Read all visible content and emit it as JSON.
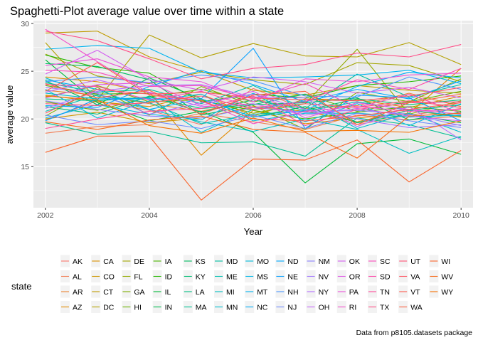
{
  "chart_data": {
    "type": "line",
    "title": "Spaghetti-Plot average value over time within a state",
    "xlabel": "Year",
    "ylabel": "average value",
    "caption": "Data from p8105.datasets package",
    "legend_title": "state",
    "legend_position": "bottom",
    "grid": true,
    "xlim": [
      2001.77,
      2010.23
    ],
    "ylim": [
      10.7,
      30.3
    ],
    "x": [
      2002,
      2003,
      2004,
      2005,
      2006,
      2007,
      2008,
      2009,
      2010
    ],
    "x_ticks": [
      "2002",
      "2004",
      "2006",
      "2008",
      "2010"
    ],
    "y_ticks": [
      "15",
      "20",
      "25",
      "30"
    ],
    "series": [
      {
        "name": "AK",
        "color": "#F8766D",
        "values": [
          19.9,
          21.9,
          20.9,
          19.4,
          23.2,
          21.0,
          19.4,
          20.4,
          21.1
        ]
      },
      {
        "name": "AL",
        "color": "#F27D53",
        "values": [
          18.5,
          19.2,
          19.4,
          20.6,
          19.7,
          18.9,
          20.4,
          19.9,
          20.3
        ]
      },
      {
        "name": "AR",
        "color": "#EA8331",
        "values": [
          23.0,
          22.5,
          21.6,
          20.8,
          22.0,
          21.1,
          21.4,
          22.7,
          21.3
        ]
      },
      {
        "name": "AZ",
        "color": "#E18A00",
        "values": [
          24.4,
          23.9,
          22.8,
          16.2,
          20.9,
          19.5,
          20.1,
          20.6,
          25.3
        ]
      },
      {
        "name": "CA",
        "color": "#D89000",
        "values": [
          22.5,
          21.8,
          21.3,
          22.6,
          20.3,
          22.1,
          22.0,
          21.2,
          22.4
        ]
      },
      {
        "name": "CO",
        "color": "#CD9600",
        "values": [
          20.0,
          20.7,
          19.6,
          20.1,
          21.3,
          20.8,
          19.7,
          20.9,
          20.2
        ]
      },
      {
        "name": "CT",
        "color": "#C09B00",
        "values": [
          29.0,
          29.2,
          26.5,
          25.0,
          23.0,
          22.5,
          23.5,
          23.0,
          22.7
        ]
      },
      {
        "name": "DC",
        "color": "#B3A000",
        "values": [
          28.0,
          22.0,
          28.8,
          26.4,
          27.9,
          26.6,
          26.5,
          28.0,
          25.7
        ]
      },
      {
        "name": "DE",
        "color": "#A3A500",
        "values": [
          26.8,
          24.5,
          23.7,
          24.9,
          24.1,
          23.6,
          25.9,
          25.6,
          23.9
        ]
      },
      {
        "name": "FL",
        "color": "#93AA00",
        "values": [
          22.3,
          23.5,
          21.8,
          22.0,
          20.6,
          21.6,
          27.3,
          20.5,
          21.9
        ]
      },
      {
        "name": "GA",
        "color": "#7FAE00",
        "values": [
          20.3,
          23.3,
          20.4,
          23.4,
          21.4,
          18.9,
          22.8,
          21.8,
          24.2
        ]
      },
      {
        "name": "HI",
        "color": "#68B100",
        "values": [
          21.8,
          20.9,
          22.3,
          23.1,
          21.8,
          22.6,
          20.8,
          21.8,
          22.9
        ]
      },
      {
        "name": "IA",
        "color": "#4CB400",
        "values": [
          23.5,
          22.6,
          22.7,
          21.9,
          20.9,
          20.0,
          20.7,
          21.3,
          20.8
        ]
      },
      {
        "name": "ID",
        "color": "#24B700",
        "values": [
          26.7,
          25.4,
          24.8,
          21.8,
          22.6,
          22.2,
          23.5,
          23.9,
          24.5
        ]
      },
      {
        "name": "IL",
        "color": "#00BA38",
        "values": [
          26.2,
          21.7,
          19.8,
          20.8,
          18.6,
          13.3,
          17.4,
          17.9,
          16.3
        ]
      },
      {
        "name": "IN",
        "color": "#00BB4E",
        "values": [
          24.0,
          21.5,
          24.3,
          22.1,
          20.2,
          21.3,
          19.6,
          20.5,
          19.6
        ]
      },
      {
        "name": "KS",
        "color": "#00BC61",
        "values": [
          25.8,
          25.5,
          24.1,
          20.4,
          21.5,
          21.7,
          22.2,
          19.9,
          20.7
        ]
      },
      {
        "name": "KY",
        "color": "#00BD73",
        "values": [
          21.3,
          20.5,
          22.4,
          20.7,
          22.0,
          20.9,
          22.1,
          21.5,
          22.0
        ]
      },
      {
        "name": "LA",
        "color": "#00BE83",
        "values": [
          22.1,
          21.9,
          22.3,
          21.1,
          21.5,
          22.6,
          19.6,
          20.9,
          21.5
        ]
      },
      {
        "name": "MA",
        "color": "#00BF93",
        "values": [
          19.6,
          18.4,
          18.7,
          17.5,
          17.6,
          16.1,
          20.1,
          19.4,
          18.0
        ]
      },
      {
        "name": "MD",
        "color": "#00C0A3",
        "values": [
          23.8,
          22.8,
          23.1,
          21.6,
          23.5,
          21.1,
          24.7,
          22.3,
          23.6
        ]
      },
      {
        "name": "ME",
        "color": "#00C0B2",
        "values": [
          20.8,
          22.5,
          21.7,
          19.5,
          20.5,
          20.8,
          21.8,
          20.9,
          20.3
        ]
      },
      {
        "name": "MI",
        "color": "#00BFC1",
        "values": [
          24.3,
          22.4,
          21.0,
          19.7,
          18.7,
          20.0,
          18.9,
          16.4,
          18.2
        ]
      },
      {
        "name": "MN",
        "color": "#00BECF",
        "values": [
          22.7,
          22.1,
          22.2,
          18.6,
          21.0,
          21.9,
          19.0,
          20.6,
          18.6
        ]
      },
      {
        "name": "MO",
        "color": "#00BBDC",
        "values": [
          23.1,
          20.1,
          21.9,
          22.6,
          19.8,
          20.6,
          20.6,
          20.2,
          20.4
        ]
      },
      {
        "name": "MS",
        "color": "#00B8E7",
        "values": [
          20.1,
          21.5,
          20.5,
          19.9,
          22.7,
          19.7,
          21.6,
          19.3,
          21.6
        ]
      },
      {
        "name": "MT",
        "color": "#00B4F0",
        "values": [
          27.3,
          27.7,
          27.4,
          24.9,
          24.3,
          24.4,
          24.6,
          25.1,
          23.7
        ]
      },
      {
        "name": "NC",
        "color": "#00AFF8",
        "values": [
          24.1,
          23.1,
          21.0,
          22.1,
          20.2,
          20.9,
          23.4,
          24.9,
          24.3
        ]
      },
      {
        "name": "ND",
        "color": "#00A9FF",
        "values": [
          21.4,
          21.2,
          23.4,
          25.1,
          23.6,
          21.8,
          23.1,
          22.1,
          24.0
        ]
      },
      {
        "name": "NE",
        "color": "#08A0FF",
        "values": [
          19.8,
          22.1,
          22.1,
          22.1,
          27.4,
          19.0,
          22.5,
          22.2,
          19.8
        ]
      },
      {
        "name": "NH",
        "color": "#4B96FF",
        "values": [
          23.9,
          24.4,
          23.8,
          24.6,
          24.0,
          22.4,
          22.3,
          24.4,
          23.1
        ]
      },
      {
        "name": "NJ",
        "color": "#6E8BFF",
        "values": [
          20.4,
          19.4,
          19.8,
          19.0,
          20.4,
          19.0,
          20.6,
          19.8,
          19.1
        ]
      },
      {
        "name": "NM",
        "color": "#8B81FF",
        "values": [
          21.9,
          21.0,
          20.3,
          20.1,
          21.2,
          20.7,
          20.9,
          20.5,
          19.3
        ]
      },
      {
        "name": "NV",
        "color": "#A177FF",
        "values": [
          23.3,
          22.7,
          20.5,
          21.7,
          22.6,
          21.0,
          20.0,
          19.1,
          19.4
        ]
      },
      {
        "name": "NY",
        "color": "#B56DFF",
        "values": [
          21.1,
          22.9,
          23.5,
          23.6,
          22.3,
          22.2,
          19.2,
          21.3,
          17.8
        ]
      },
      {
        "name": "OH",
        "color": "#C565F9",
        "values": [
          22.8,
          24.1,
          22.8,
          21.3,
          21.6,
          20.4,
          21.1,
          20.3,
          19.8
        ]
      },
      {
        "name": "OK",
        "color": "#D35EF0",
        "values": [
          24.7,
          27.2,
          24.1,
          23.0,
          24.4,
          23.9,
          22.7,
          23.3,
          22.2
        ]
      },
      {
        "name": "OR",
        "color": "#DF58E6",
        "values": [
          22.2,
          23.6,
          23.8,
          21.4,
          22.9,
          20.1,
          21.7,
          21.0,
          20.5
        ]
      },
      {
        "name": "PA",
        "color": "#EA52D9",
        "values": [
          25.6,
          26.3,
          24.4,
          23.9,
          21.8,
          24.2,
          23.9,
          24.6,
          24.8
        ]
      },
      {
        "name": "RI",
        "color": "#F24ECB",
        "values": [
          29.4,
          26.0,
          22.7,
          21.9,
          19.5,
          20.8,
          21.3,
          20.8,
          21.0
        ]
      },
      {
        "name": "SC",
        "color": "#F84BBB",
        "values": [
          25.1,
          24.9,
          23.4,
          23.5,
          22.1,
          23.7,
          21.2,
          22.6,
          20.6
        ]
      },
      {
        "name": "SD",
        "color": "#FD49AA",
        "values": [
          23.6,
          23.4,
          22.0,
          22.9,
          21.2,
          21.8,
          24.1,
          23.1,
          25.3
        ]
      },
      {
        "name": "TN",
        "color": "#FF4A99",
        "values": [
          19.0,
          20.0,
          20.8,
          21.1,
          22.4,
          19.3,
          21.0,
          21.7,
          21.8
        ]
      },
      {
        "name": "TX",
        "color": "#FF4D87",
        "values": [
          29.2,
          28.2,
          26.3,
          24.2,
          25.3,
          25.7,
          26.9,
          26.5,
          27.8
        ]
      },
      {
        "name": "UT",
        "color": "#FF5175",
        "values": [
          21.6,
          21.4,
          21.7,
          22.4,
          21.0,
          21.6,
          21.2,
          21.9,
          21.2
        ]
      },
      {
        "name": "VA",
        "color": "#FF5663",
        "values": [
          20.6,
          23.1,
          22.6,
          22.8,
          22.2,
          22.0,
          21.9,
          22.4,
          23.3
        ]
      },
      {
        "name": "VT",
        "color": "#FE5B4F",
        "values": [
          22.9,
          25.9,
          22.5,
          21.9,
          20.0,
          19.8,
          20.3,
          21.0,
          21.7
        ]
      },
      {
        "name": "WA",
        "color": "#FB6040",
        "values": [
          23.7,
          22.2,
          23.0,
          20.5,
          22.5,
          22.9,
          19.4,
          21.7,
          22.6
        ]
      },
      {
        "name": "WI",
        "color": "#F9652C",
        "values": [
          16.5,
          18.2,
          18.2,
          11.5,
          15.8,
          15.7,
          17.8,
          13.4,
          16.7
        ]
      },
      {
        "name": "WV",
        "color": "#F76A17",
        "values": [
          19.7,
          18.9,
          19.9,
          20.3,
          18.9,
          18.6,
          15.9,
          20.3,
          20.6
        ]
      },
      {
        "name": "WY",
        "color": "#F57000",
        "values": [
          22.4,
          22.0,
          19.3,
          18.5,
          20.1,
          18.7,
          18.8,
          18.6,
          19.8
        ]
      }
    ]
  }
}
